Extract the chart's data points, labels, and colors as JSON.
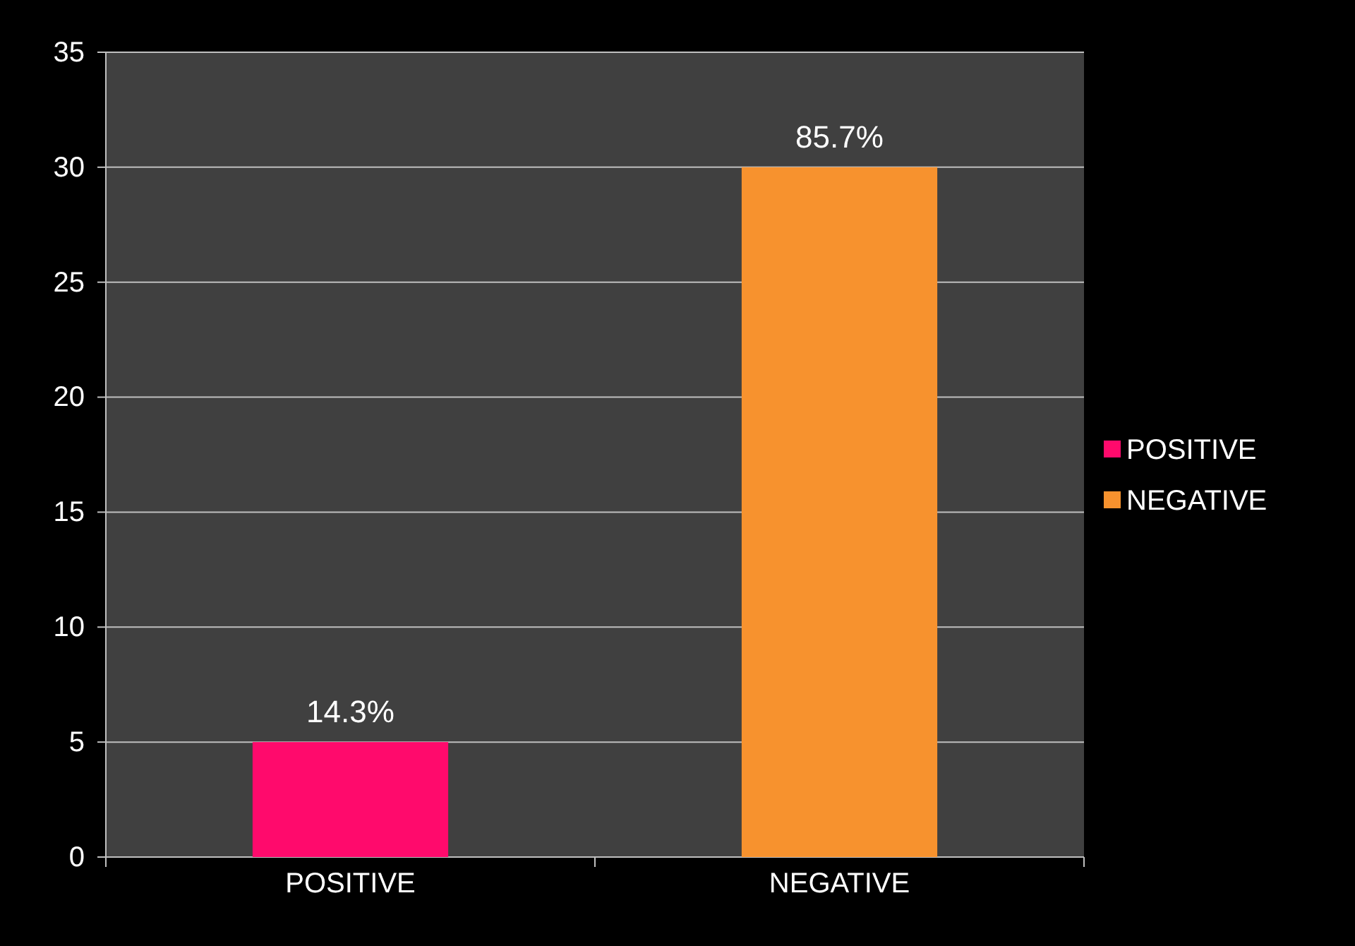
{
  "chart_data": {
    "type": "bar",
    "categories": [
      "POSITIVE",
      "NEGATIVE"
    ],
    "series": [
      {
        "name": "POSITIVE",
        "color": "#ff0a6c",
        "values": [
          5,
          null
        ]
      },
      {
        "name": "NEGATIVE",
        "color": "#f7922e",
        "values": [
          null,
          30
        ]
      }
    ],
    "annotations": [
      {
        "text": "14.3%",
        "x": "POSITIVE",
        "y": 5
      },
      {
        "text": "85.7%",
        "x": "NEGATIVE",
        "y": 30
      }
    ],
    "ylim": [
      0,
      35
    ],
    "yticks": [
      0,
      5,
      10,
      15,
      20,
      25,
      30,
      35
    ],
    "grid": "y",
    "legend": "right"
  }
}
